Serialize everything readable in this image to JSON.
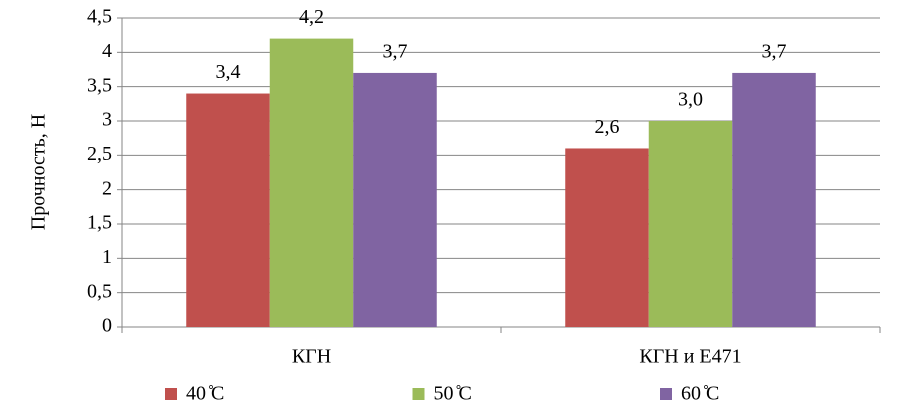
{
  "chart_data": {
    "type": "bar",
    "y_label": "Прочность, Н",
    "categories": [
      "КГН",
      "КГН и  Е471"
    ],
    "series": [
      {
        "name": "40  ̊С",
        "color": "#c0504d",
        "values": [
          3.4,
          2.6
        ],
        "value_labels": [
          "3,4",
          "2,6"
        ]
      },
      {
        "name": "50  ̊С",
        "color": "#9bbb59",
        "values": [
          4.2,
          3.0
        ],
        "value_labels": [
          "4,2",
          "3,0"
        ]
      },
      {
        "name": "60  ̊С",
        "color": "#8064a2",
        "values": [
          3.7,
          3.7
        ],
        "value_labels": [
          "3,7",
          "3,7"
        ]
      }
    ],
    "ylim": [
      0,
      4.5
    ],
    "yticks": [
      0,
      {
        "value": 0.5,
        "label": "0,5"
      },
      1,
      {
        "value": 1.5,
        "label": "1,5"
      },
      2,
      {
        "value": 2.5,
        "label": "2,5"
      },
      3,
      {
        "value": 3.5,
        "label": "3,5"
      },
      4,
      {
        "value": 4.5,
        "label": "4,5"
      }
    ],
    "grid": true,
    "legend": "bottom"
  }
}
